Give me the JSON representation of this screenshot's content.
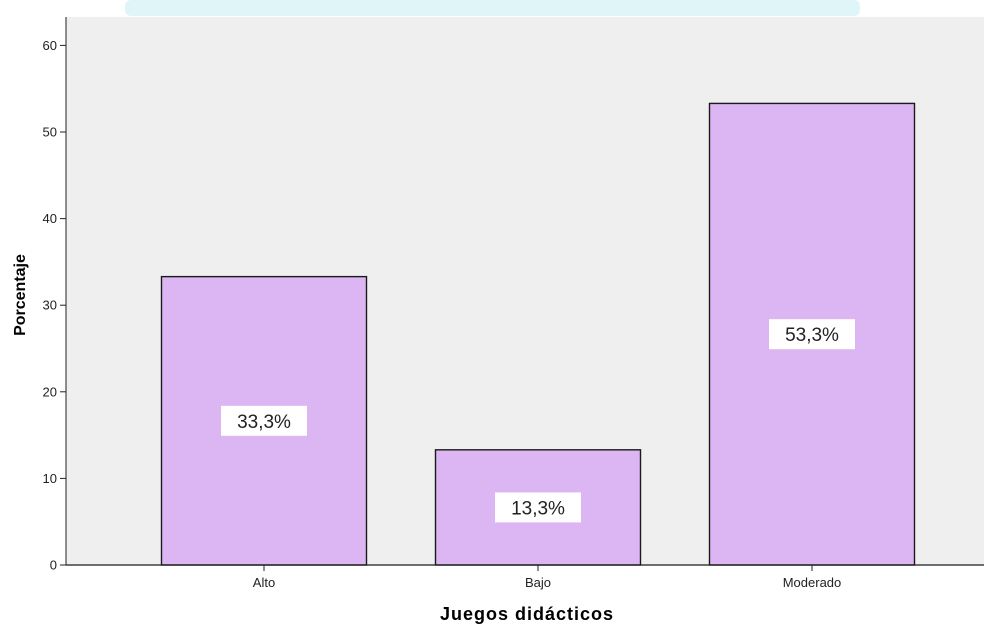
{
  "colors": {
    "plot_background": "#efefef",
    "bar_fill": "#dcb6f2",
    "bar_stroke": "#1a1a1a",
    "top_band": "#dff5f8"
  },
  "chart_data": {
    "type": "bar",
    "categories": [
      "Alto",
      "Bajo",
      "Moderado"
    ],
    "values": [
      33.3,
      13.3,
      53.3
    ],
    "data_labels": [
      "33,3%",
      "13,3%",
      "53,3%"
    ],
    "xlabel": "Juegos didácticos",
    "ylabel": "Porcentaje",
    "ylim": [
      0,
      60
    ],
    "yticks": [
      "0",
      "10",
      "20",
      "30",
      "40",
      "50",
      "60"
    ],
    "grid": false,
    "legend": "none"
  }
}
